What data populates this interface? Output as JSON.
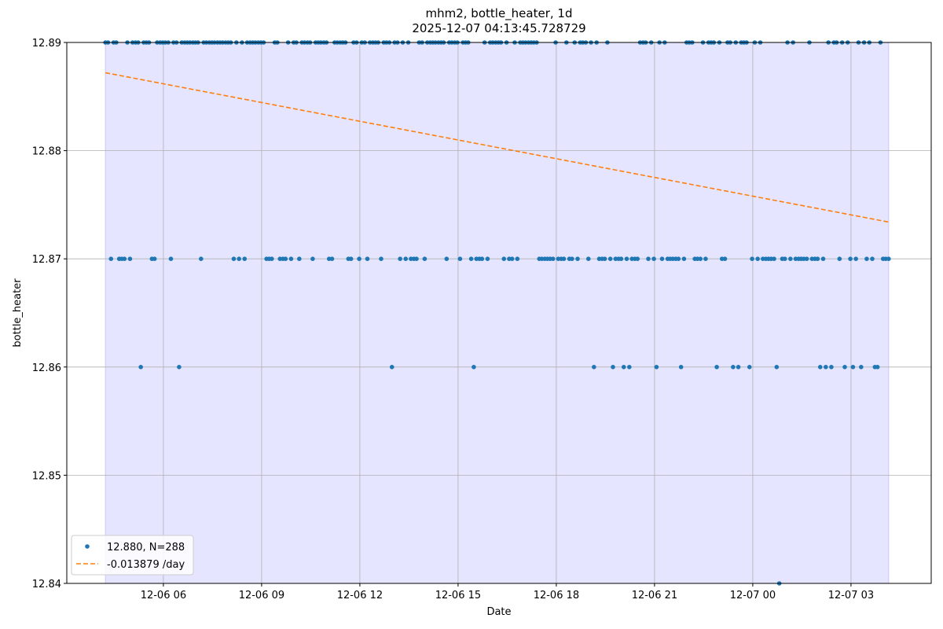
{
  "chart_data": {
    "type": "scatter",
    "title": "mhm2, bottle_heater, 1d",
    "subtitle": "2025-12-07 04:13:45.728729",
    "xlabel": "Date",
    "ylabel": "bottle_heater",
    "xlim": [
      3.05,
      29.45
    ],
    "xticks": [
      {
        "value": 6,
        "label": "12-06 06"
      },
      {
        "value": 9,
        "label": "12-06 09"
      },
      {
        "value": 12,
        "label": "12-06 12"
      },
      {
        "value": 15,
        "label": "12-06 15"
      },
      {
        "value": 18,
        "label": "12-06 18"
      },
      {
        "value": 21,
        "label": "12-06 21"
      },
      {
        "value": 24,
        "label": "12-07 00"
      },
      {
        "value": 27,
        "label": "12-07 03"
      }
    ],
    "ylim": [
      12.84,
      12.89
    ],
    "yticks": [
      12.84,
      12.85,
      12.86,
      12.87,
      12.88,
      12.89
    ],
    "grid": true,
    "legend": "lower left",
    "span_color": "#e5e5ff",
    "series": [
      {
        "name": "12.880, N=288",
        "color": "#1f77b4",
        "style": "markers",
        "x": [
          4.23,
          4.31,
          4.4,
          4.48,
          4.56,
          4.65,
          4.73,
          4.81,
          4.9,
          4.98,
          5.06,
          5.15,
          5.23,
          5.31,
          5.4,
          5.48,
          5.56,
          5.65,
          5.73,
          5.81,
          5.9,
          5.98,
          6.06,
          6.15,
          6.23,
          6.31,
          6.4,
          6.48,
          6.56,
          6.65,
          6.73,
          6.81,
          6.9,
          6.98,
          7.06,
          7.15,
          7.23,
          7.31,
          7.4,
          7.48,
          7.56,
          7.65,
          7.73,
          7.81,
          7.9,
          7.98,
          8.06,
          8.15,
          8.23,
          8.31,
          8.4,
          8.48,
          8.56,
          8.65,
          8.73,
          8.81,
          8.9,
          8.98,
          9.06,
          9.15,
          9.23,
          9.31,
          9.4,
          9.48,
          9.56,
          9.65,
          9.73,
          9.81,
          9.9,
          9.98,
          10.06,
          10.15,
          10.23,
          10.31,
          10.4,
          10.48,
          10.56,
          10.65,
          10.73,
          10.81,
          10.9,
          10.98,
          11.06,
          11.15,
          11.23,
          11.31,
          11.4,
          11.48,
          11.56,
          11.65,
          11.73,
          11.81,
          11.9,
          11.98,
          12.06,
          12.15,
          12.23,
          12.31,
          12.4,
          12.48,
          12.56,
          12.65,
          12.73,
          12.81,
          12.9,
          12.98,
          13.06,
          13.15,
          13.23,
          13.31,
          13.4,
          13.48,
          13.56,
          13.65,
          13.73,
          13.81,
          13.9,
          13.98,
          14.06,
          14.15,
          14.23,
          14.31,
          14.4,
          14.48,
          14.56,
          14.65,
          14.73,
          14.81,
          14.9,
          14.98,
          15.06,
          15.15,
          15.23,
          15.31,
          15.4,
          15.48,
          15.56,
          15.65,
          15.73,
          15.81,
          15.9,
          15.98,
          16.06,
          16.15,
          16.23,
          16.31,
          16.4,
          16.48,
          16.56,
          16.65,
          16.73,
          16.81,
          16.9,
          16.98,
          17.06,
          17.15,
          17.23,
          17.31,
          17.4,
          17.48,
          17.56,
          17.65,
          17.73,
          17.81,
          17.9,
          17.98,
          18.06,
          18.15,
          18.23,
          18.31,
          18.4,
          18.48,
          18.56,
          18.65,
          18.73,
          18.81,
          18.9,
          18.98,
          19.06,
          19.15,
          19.23,
          19.31,
          19.4,
          19.48,
          19.56,
          19.65,
          19.73,
          19.81,
          19.9,
          19.98,
          20.06,
          20.15,
          20.23,
          20.31,
          20.4,
          20.48,
          20.56,
          20.65,
          20.73,
          20.81,
          20.9,
          20.98,
          21.06,
          21.15,
          21.23,
          21.31,
          21.4,
          21.48,
          21.56,
          21.65,
          21.73,
          21.81,
          21.9,
          21.98,
          22.06,
          22.15,
          22.23,
          22.31,
          22.4,
          22.48,
          22.56,
          22.65,
          22.73,
          22.81,
          22.9,
          22.98,
          23.06,
          23.15,
          23.23,
          23.31,
          23.4,
          23.48,
          23.56,
          23.65,
          23.73,
          23.81,
          23.9,
          23.98,
          24.06,
          24.15,
          24.23,
          24.31,
          24.4,
          24.48,
          24.56,
          24.65,
          24.73,
          24.81,
          24.9,
          24.98,
          25.06,
          25.15,
          25.23,
          25.31,
          25.4,
          25.48,
          25.56,
          25.65,
          25.73,
          25.81,
          25.9,
          25.98,
          26.06,
          26.15,
          26.23,
          26.31,
          26.4,
          26.48,
          26.56,
          26.65,
          26.73,
          26.81,
          26.9,
          26.98,
          27.06,
          27.15,
          27.23,
          27.31,
          27.4,
          27.48,
          27.56,
          27.65,
          27.73,
          27.81,
          27.9,
          27.98,
          28.06,
          28.15
        ],
        "values": [
          12.89,
          12.89,
          12.87,
          12.89,
          12.89,
          12.87,
          12.87,
          12.87,
          12.89,
          12.87,
          12.89,
          12.89,
          12.89,
          12.86,
          12.89,
          12.89,
          12.89,
          12.87,
          12.87,
          12.89,
          12.89,
          12.89,
          12.89,
          12.89,
          12.87,
          12.89,
          12.89,
          12.86,
          12.89,
          12.89,
          12.89,
          12.89,
          12.89,
          12.89,
          12.89,
          12.87,
          12.89,
          12.89,
          12.89,
          12.89,
          12.89,
          12.89,
          12.89,
          12.89,
          12.89,
          12.89,
          12.89,
          12.87,
          12.89,
          12.87,
          12.89,
          12.87,
          12.89,
          12.89,
          12.89,
          12.89,
          12.89,
          12.89,
          12.89,
          12.87,
          12.87,
          12.87,
          12.89,
          12.89,
          12.87,
          12.87,
          12.87,
          12.89,
          12.87,
          12.89,
          12.89,
          12.87,
          12.89,
          12.89,
          12.89,
          12.89,
          12.87,
          12.89,
          12.89,
          12.89,
          12.89,
          12.89,
          12.87,
          12.87,
          12.89,
          12.89,
          12.89,
          12.89,
          12.89,
          12.87,
          12.87,
          12.89,
          12.89,
          12.87,
          12.89,
          12.89,
          12.87,
          12.89,
          12.89,
          12.89,
          12.89,
          12.87,
          12.89,
          12.89,
          12.89,
          12.86,
          12.89,
          12.89,
          12.87,
          12.89,
          12.87,
          12.89,
          12.87,
          12.87,
          12.87,
          12.89,
          12.89,
          12.87,
          12.89,
          12.89,
          12.89,
          12.89,
          12.89,
          12.89,
          12.89,
          12.87,
          12.89,
          12.89,
          12.89,
          12.89,
          12.87,
          12.89,
          12.89,
          12.89,
          12.87,
          12.86,
          12.87,
          12.87,
          12.87,
          12.89,
          12.87,
          12.89,
          12.89,
          12.89,
          12.89,
          12.89,
          12.87,
          12.89,
          12.87,
          12.87,
          12.89,
          12.87,
          12.89,
          12.89,
          12.89,
          12.89,
          12.89,
          12.89,
          12.89,
          12.87,
          12.87,
          12.87,
          12.87,
          12.87,
          12.87,
          12.89,
          12.87,
          12.87,
          12.87,
          12.89,
          12.87,
          12.87,
          12.89,
          12.87,
          12.89,
          12.89,
          12.89,
          12.87,
          12.89,
          12.86,
          12.89,
          12.87,
          12.87,
          12.87,
          12.89,
          12.87,
          12.86,
          12.87,
          12.87,
          12.87,
          12.86,
          12.87,
          12.86,
          12.87,
          12.87,
          12.87,
          12.89,
          12.89,
          12.89,
          12.87,
          12.89,
          12.87,
          12.86,
          12.89,
          12.87,
          12.89,
          12.87,
          12.87,
          12.87,
          12.87,
          12.87,
          12.86,
          12.87,
          12.89,
          12.89,
          12.89,
          12.87,
          12.87,
          12.87,
          12.89,
          12.87,
          12.89,
          12.89,
          12.89,
          12.86,
          12.89,
          12.87,
          12.87,
          12.89,
          12.89,
          12.86,
          12.89,
          12.86,
          12.89,
          12.89,
          12.89,
          12.86,
          12.87,
          12.89,
          12.87,
          12.89,
          12.87,
          12.87,
          12.87,
          12.87,
          12.87,
          12.86,
          12.84,
          12.87,
          12.87,
          12.89,
          12.87,
          12.89,
          12.87,
          12.87,
          12.87,
          12.87,
          12.87,
          12.89,
          12.87,
          12.87,
          12.87,
          12.86,
          12.87,
          12.86,
          12.89,
          12.86,
          12.89,
          12.89,
          12.87,
          12.89,
          12.86,
          12.89,
          12.87,
          12.86,
          12.87,
          12.89,
          12.86,
          12.89,
          12.87,
          12.89,
          12.87,
          12.86,
          12.86,
          12.89,
          12.87,
          12.87,
          12.87
        ]
      },
      {
        "name": "-0.013879 /day",
        "color": "#ff7f0e",
        "style": "dashed",
        "x": [
          4.23,
          28.15
        ],
        "values": [
          12.8872,
          12.8734
        ]
      }
    ]
  }
}
